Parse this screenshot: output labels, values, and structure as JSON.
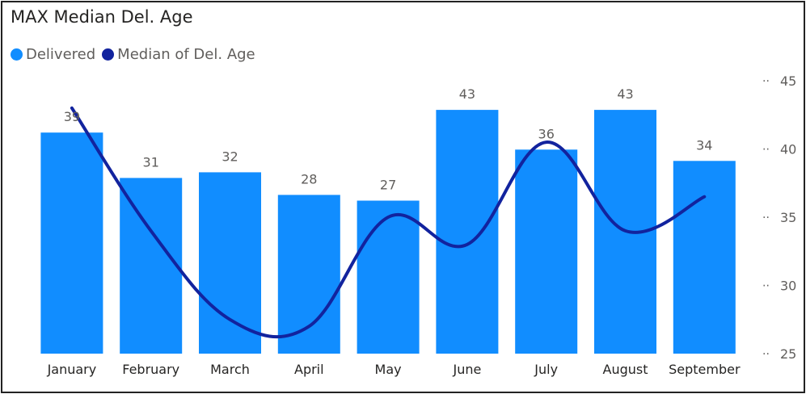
{
  "chart_data": {
    "type": "bar",
    "title": "MAX Median Del. Age",
    "categories": [
      "January",
      "February",
      "March",
      "April",
      "May",
      "June",
      "July",
      "August",
      "September"
    ],
    "series": [
      {
        "name": "Delivered",
        "type": "bar",
        "axis": "left",
        "color": "#118dff",
        "values": [
          39,
          31,
          32,
          28,
          27,
          43,
          36,
          43,
          34
        ],
        "data_labels": true
      },
      {
        "name": "Median of Del. Age",
        "type": "line",
        "axis": "right",
        "color": "#12239e",
        "values": [
          43,
          34,
          27.5,
          27,
          35,
          33,
          40.5,
          34,
          36.5
        ]
      }
    ],
    "y_left": {
      "range": [
        0,
        48
      ],
      "visible": false
    },
    "y_right": {
      "range": [
        25,
        45
      ],
      "ticks": [
        25,
        30,
        35,
        40,
        45
      ]
    },
    "grid": false,
    "legend_position": "top-left"
  }
}
